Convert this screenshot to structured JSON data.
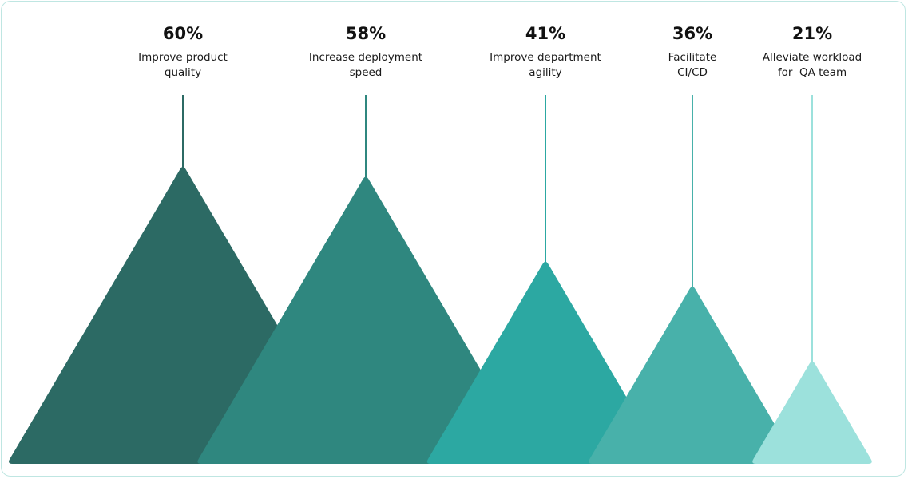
{
  "chart_data": {
    "type": "bar",
    "title": "",
    "xlabel": "",
    "ylabel": "",
    "ylim": [
      0,
      60
    ],
    "grid": false,
    "legend": "none",
    "unit": "%",
    "categories": [
      [
        "Improve product",
        "quality"
      ],
      [
        "Increase deployment",
        "speed"
      ],
      [
        "Improve department",
        "agility"
      ],
      [
        "Facilitate",
        "CI/CD"
      ],
      [
        "Alleviate workload",
        "for  QA team"
      ]
    ],
    "values": [
      60,
      58,
      41,
      36,
      21
    ],
    "value_labels": [
      "60%",
      "58%",
      "41%",
      "36%",
      "21%"
    ],
    "colors": [
      "#2c6a64",
      "#2f877f",
      "#2ca8a2",
      "#48b1aa",
      "#9ce1dc"
    ],
    "line_colors": [
      "#2c6a64",
      "#2f877f",
      "#2ca8a2",
      "#48b1aa",
      "#9ce1dc"
    ]
  }
}
